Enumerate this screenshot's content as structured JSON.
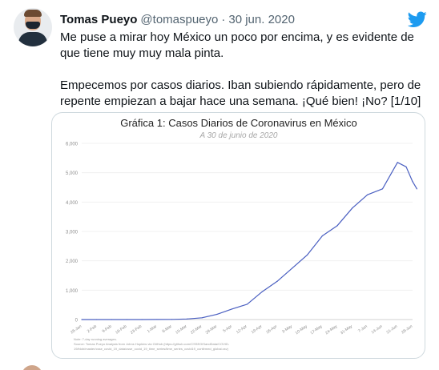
{
  "tweet": {
    "author_name": "Tomas Pueyo",
    "handle": "@tomaspueyo",
    "separator": "·",
    "date": "30 jun. 2020",
    "paragraphs": [
      "Me puse a mirar hoy México un poco por encima, y es evidente de que tiene muy muy mala pinta.",
      "Empecemos por casos diarios. Iban subiendo rápidamente, pero de repente empiezan a bajar hace una semana. ¡Qué bien! ¡No? [1/10]"
    ]
  },
  "icons": {
    "brand": "twitter-bird-icon",
    "brand_color": "#1d9bf0"
  },
  "chart_data": {
    "type": "line",
    "title": "Gráfica 1: Casos Diarios de Coronavirus en México",
    "subtitle": "A 30 de junio de 2020",
    "xlabel": "",
    "ylabel": "",
    "ylim": [
      0,
      6000
    ],
    "y_ticks": [
      "0",
      "1,000",
      "2,000",
      "3,000",
      "4,000",
      "5,000",
      "6,000"
    ],
    "x_ticks": [
      "26-Jan",
      "2-Feb",
      "9-Feb",
      "16-Feb",
      "23-Feb",
      "1-Mar",
      "8-Mar",
      "15-Mar",
      "22-Mar",
      "29-Mar",
      "5-Apr",
      "12-Apr",
      "19-Apr",
      "26-Apr",
      "3-May",
      "10-May",
      "17-May",
      "24-May",
      "31-May",
      "7-Jun",
      "14-Jun",
      "21-Jun",
      "28-Jun"
    ],
    "series_color": "#4a5fc1",
    "series": [
      {
        "x": [
          "26-Jan",
          "2-Feb",
          "9-Feb",
          "16-Feb",
          "23-Feb",
          "1-Mar",
          "8-Mar",
          "15-Mar",
          "22-Mar",
          "29-Mar",
          "5-Apr",
          "12-Apr",
          "19-Apr",
          "26-Apr",
          "3-May",
          "10-May",
          "17-May",
          "24-May",
          "31-May",
          "7-Jun",
          "14-Jun",
          "21-Jun",
          "25-Jun",
          "28-Jun",
          "30-Jun"
        ],
        "values": [
          0,
          0,
          0,
          0,
          0,
          2,
          5,
          20,
          60,
          180,
          360,
          520,
          950,
          1300,
          1750,
          2200,
          2850,
          3200,
          3800,
          4250,
          4450,
          5350,
          5200,
          4700,
          4450
        ]
      }
    ],
    "notes": [
      "Note: 7-day running averages.",
      "Source: Tomas Pueyo Analysis from Johns Hopkins via GitHub (https://github.com/CSSEGISandData/COVID-",
      "19/blob/master/csse_covid_19_data/csse_covid_19_time_series/time_series_covid19_confirmed_global.csv)"
    ]
  }
}
